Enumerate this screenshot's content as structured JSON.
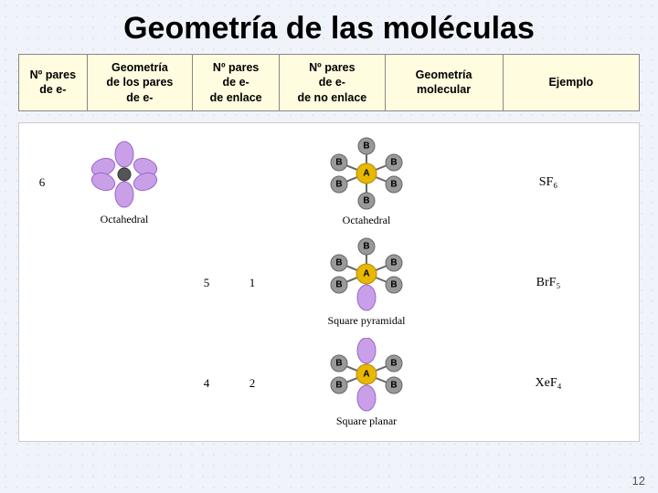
{
  "title": "Geometría de las moléculas",
  "header": {
    "c1": "Nº pares\nde e-",
    "c2": "Geometría\nde los pares\nde e-",
    "c3": "Nº pares\nde e-\nde enlace",
    "c4": "Nº pares\nde e-\nde no enlace",
    "c5": "Geometría\nmolecular",
    "c6": "Ejemplo"
  },
  "rows": [
    {
      "npairs": "6",
      "epair_label": "Octahedral",
      "bond": "",
      "lone": "",
      "geom_label": "Octahedral",
      "example": "SF₆"
    },
    {
      "npairs": "",
      "epair_label": "",
      "bond": "5",
      "lone": "1",
      "geom_label": "Square pyramidal",
      "example": "BrF₅"
    },
    {
      "npairs": "",
      "epair_label": "",
      "bond": "4",
      "lone": "2",
      "geom_label": "Square planar",
      "example": "XeF₄"
    }
  ],
  "colors": {
    "center": "#e6b800",
    "outer": "#9aa2ad",
    "lobe": "#c9a0e8"
  },
  "page_number": "12"
}
